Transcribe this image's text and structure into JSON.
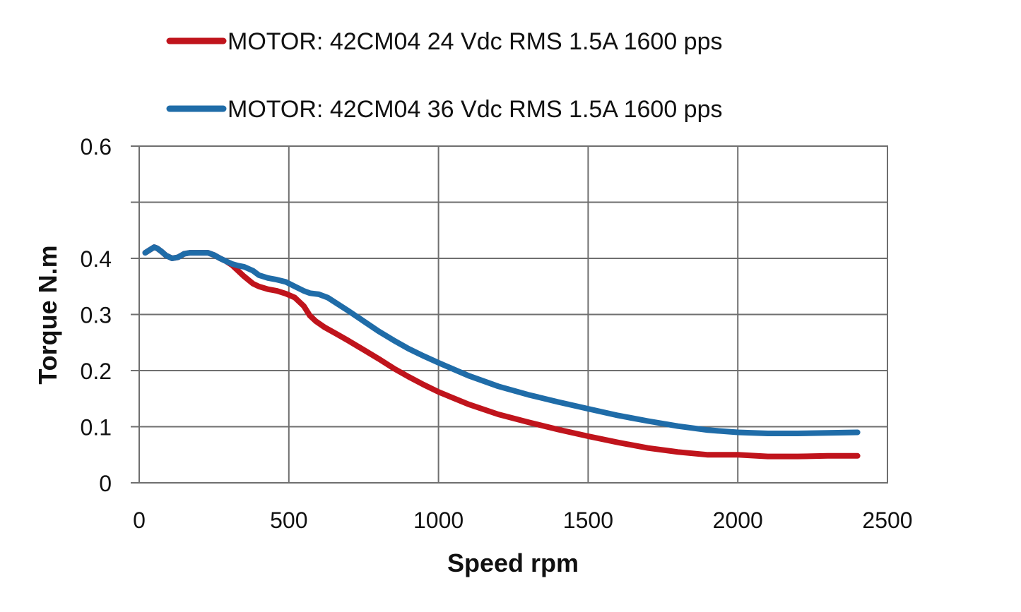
{
  "chart_data": {
    "type": "line",
    "title": "",
    "xlabel": "Speed rpm",
    "ylabel": "Torque N.m",
    "xlim": [
      0,
      2500
    ],
    "ylim": [
      0,
      0.6
    ],
    "x_ticks": [
      0,
      500,
      1000,
      1500,
      2000,
      2500
    ],
    "y_ticks": [
      0,
      0.1,
      0.2,
      0.3,
      0.4,
      0.5,
      0.6
    ],
    "x_tick_labels": [
      "0",
      "500",
      "1000",
      "1500",
      "2000",
      "2500"
    ],
    "y_tick_labels": [
      "0",
      "0.1",
      "0.2",
      "0.3",
      "0.4",
      "",
      "0.6"
    ],
    "grid": true,
    "legend_position": "top",
    "series": [
      {
        "name": "MOTOR: 42CM04 24 Vdc  RMS 1.5A  1600 pps",
        "color": "#c0141c",
        "x": [
          20,
          35,
          50,
          60,
          75,
          90,
          110,
          130,
          150,
          170,
          190,
          210,
          230,
          250,
          270,
          290,
          310,
          330,
          350,
          380,
          400,
          430,
          460,
          490,
          520,
          550,
          570,
          590,
          620,
          660,
          700,
          750,
          800,
          850,
          900,
          950,
          1000,
          1100,
          1200,
          1300,
          1400,
          1500,
          1600,
          1700,
          1800,
          1900,
          2000,
          2100,
          2150,
          2200,
          2300,
          2400
        ],
        "y": [
          0.41,
          0.415,
          0.42,
          0.418,
          0.412,
          0.405,
          0.4,
          0.402,
          0.408,
          0.41,
          0.41,
          0.41,
          0.41,
          0.406,
          0.4,
          0.395,
          0.388,
          0.378,
          0.368,
          0.355,
          0.35,
          0.345,
          0.342,
          0.337,
          0.33,
          0.315,
          0.298,
          0.288,
          0.277,
          0.265,
          0.253,
          0.237,
          0.221,
          0.204,
          0.189,
          0.175,
          0.162,
          0.14,
          0.122,
          0.108,
          0.095,
          0.083,
          0.072,
          0.062,
          0.055,
          0.05,
          0.05,
          0.047,
          0.047,
          0.047,
          0.048,
          0.048
        ]
      },
      {
        "name": "MOTOR: 42CM04 36 Vdc  RMS 1.5A  1600 pps",
        "color": "#1f6ca8",
        "x": [
          20,
          35,
          50,
          60,
          75,
          90,
          110,
          130,
          150,
          170,
          190,
          210,
          230,
          250,
          270,
          290,
          310,
          330,
          350,
          380,
          400,
          430,
          460,
          490,
          520,
          550,
          570,
          600,
          630,
          700,
          750,
          800,
          850,
          900,
          950,
          1000,
          1100,
          1200,
          1300,
          1400,
          1500,
          1600,
          1700,
          1800,
          1900,
          2000,
          2100,
          2150,
          2200,
          2300,
          2400
        ],
        "y": [
          0.41,
          0.415,
          0.42,
          0.418,
          0.412,
          0.405,
          0.4,
          0.402,
          0.408,
          0.41,
          0.41,
          0.41,
          0.41,
          0.406,
          0.4,
          0.395,
          0.39,
          0.387,
          0.385,
          0.378,
          0.37,
          0.365,
          0.362,
          0.358,
          0.35,
          0.342,
          0.338,
          0.336,
          0.33,
          0.306,
          0.288,
          0.27,
          0.254,
          0.239,
          0.226,
          0.214,
          0.191,
          0.172,
          0.157,
          0.144,
          0.132,
          0.12,
          0.11,
          0.101,
          0.094,
          0.09,
          0.088,
          0.088,
          0.088,
          0.089,
          0.09
        ]
      }
    ]
  }
}
